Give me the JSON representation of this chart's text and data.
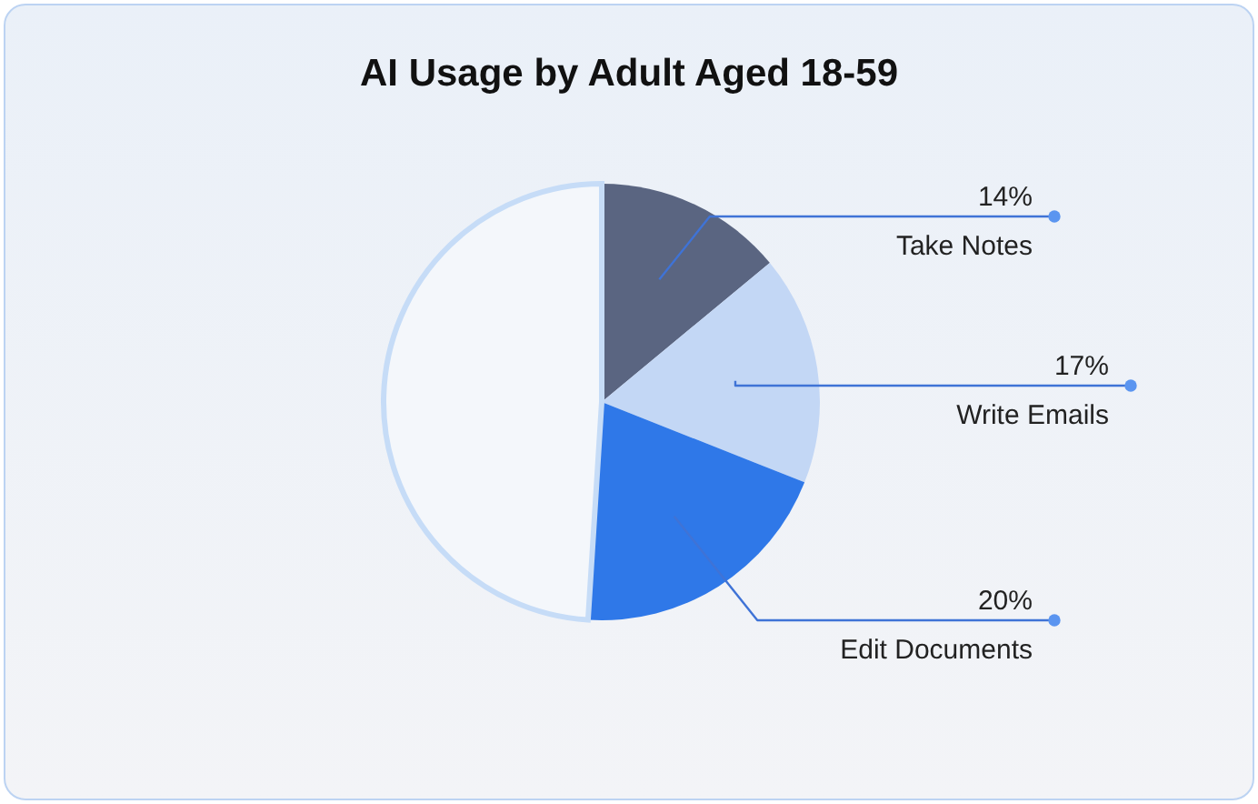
{
  "chart_data": {
    "type": "pie",
    "title": "AI Usage by Adult Aged 18-59",
    "categories": [
      "Take Notes",
      "Write Emails",
      "Edit Documents",
      null
    ],
    "values": [
      14,
      17,
      20,
      49
    ],
    "colors": [
      "#5a6581",
      "#c3d7f5",
      "#2f78e8",
      "#f4f7fb"
    ],
    "value_labels": [
      "14%",
      "17%",
      "20%",
      null
    ]
  }
}
